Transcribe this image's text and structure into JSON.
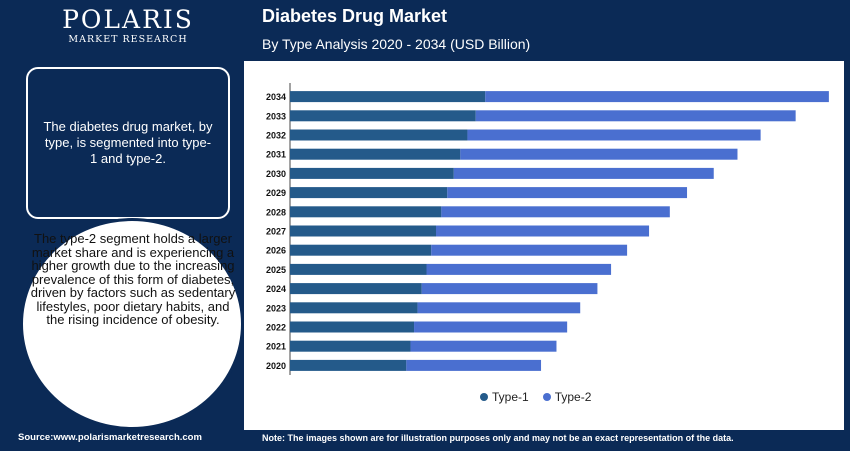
{
  "logo": {
    "name": "POLARIS",
    "tagline": "MARKET RESEARCH"
  },
  "header": {
    "title": "Diabetes Drug Market",
    "subtitle": "By Type Analysis 2020 - 2034 (USD Billion)"
  },
  "left_panel": {
    "box_text": "The diabetes drug market, by type, is segmented into type-1 and type-2.",
    "circle_text": "The type-2 segment holds a larger market share and is experiencing a higher growth due to the increasing prevalence of this form of diabetes, driven by factors such as sedentary lifestyles, poor dietary habits, and the rising incidence of obesity."
  },
  "footer": {
    "source": "Source:www.polarismarketresearch.com",
    "note": "Note: The images shown are for illustration purposes only and may not be an exact representation of the data."
  },
  "colors": {
    "type1": "#245a8a",
    "type2": "#4a6fd0",
    "navy": "#0b2a56"
  },
  "chart_data": {
    "type": "bar",
    "orientation": "horizontal",
    "stacked": true,
    "categories": [
      "2034",
      "2033",
      "2032",
      "2031",
      "2030",
      "2029",
      "2028",
      "2027",
      "2026",
      "2025",
      "2024",
      "2023",
      "2022",
      "2021",
      "2020"
    ],
    "series": [
      {
        "name": "Type-1",
        "values": [
          32.9,
          31.3,
          29.9,
          28.7,
          27.6,
          26.5,
          25.5,
          24.6,
          23.8,
          23.0,
          22.2,
          21.5,
          20.9,
          20.3,
          19.6
        ]
      },
      {
        "name": "Type-2",
        "values": [
          57.9,
          53.9,
          49.4,
          46.7,
          43.8,
          40.4,
          38.5,
          35.9,
          33.0,
          31.1,
          29.6,
          27.4,
          25.8,
          24.6,
          22.7
        ]
      }
    ],
    "xlim": [
      0,
      92
    ],
    "legend": "bottom"
  }
}
